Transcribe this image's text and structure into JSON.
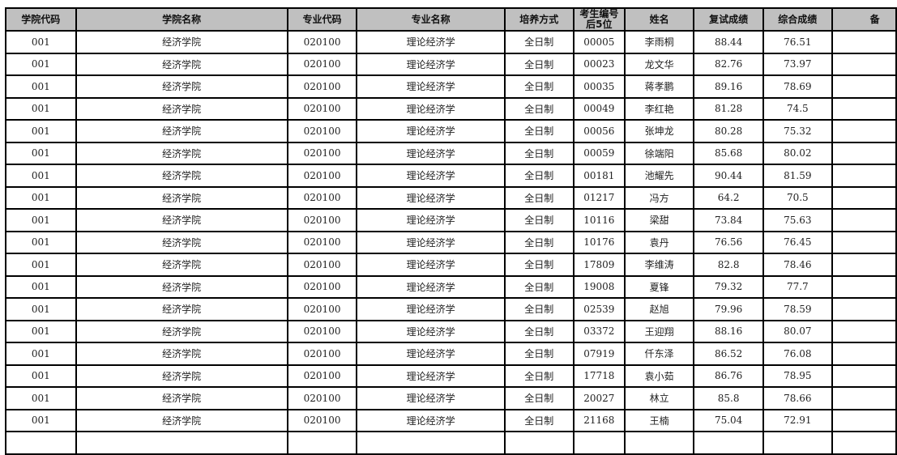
{
  "table": {
    "headers": [
      "学院代码",
      "学院名称",
      "专业代码",
      "专业名称",
      "培养方式",
      "考生编号\n后5位",
      "姓名",
      "复试成绩",
      "综合成绩",
      "备"
    ],
    "rows": [
      [
        "001",
        "经济学院",
        "020100",
        "理论经济学",
        "全日制",
        "00005",
        "李雨桐",
        "88.44",
        "76.51",
        ""
      ],
      [
        "001",
        "经济学院",
        "020100",
        "理论经济学",
        "全日制",
        "00023",
        "龙文华",
        "82.76",
        "73.97",
        ""
      ],
      [
        "001",
        "经济学院",
        "020100",
        "理论经济学",
        "全日制",
        "00035",
        "蒋孝鹏",
        "89.16",
        "78.69",
        ""
      ],
      [
        "001",
        "经济学院",
        "020100",
        "理论经济学",
        "全日制",
        "00049",
        "李红艳",
        "81.28",
        "74.5",
        ""
      ],
      [
        "001",
        "经济学院",
        "020100",
        "理论经济学",
        "全日制",
        "00056",
        "张坤龙",
        "80.28",
        "75.32",
        ""
      ],
      [
        "001",
        "经济学院",
        "020100",
        "理论经济学",
        "全日制",
        "00059",
        "徐端阳",
        "85.68",
        "80.02",
        ""
      ],
      [
        "001",
        "经济学院",
        "020100",
        "理论经济学",
        "全日制",
        "00181",
        "池耀先",
        "90.44",
        "81.59",
        ""
      ],
      [
        "001",
        "经济学院",
        "020100",
        "理论经济学",
        "全日制",
        "01217",
        "冯方",
        "64.2",
        "70.5",
        ""
      ],
      [
        "001",
        "经济学院",
        "020100",
        "理论经济学",
        "全日制",
        "10116",
        "梁甜",
        "73.84",
        "75.63",
        ""
      ],
      [
        "001",
        "经济学院",
        "020100",
        "理论经济学",
        "全日制",
        "10176",
        "袁丹",
        "76.56",
        "76.45",
        ""
      ],
      [
        "001",
        "经济学院",
        "020100",
        "理论经济学",
        "全日制",
        "17809",
        "李维涛",
        "82.8",
        "78.46",
        ""
      ],
      [
        "001",
        "经济学院",
        "020100",
        "理论经济学",
        "全日制",
        "19008",
        "夏锋",
        "79.32",
        "77.7",
        ""
      ],
      [
        "001",
        "经济学院",
        "020100",
        "理论经济学",
        "全日制",
        "02539",
        "赵旭",
        "79.96",
        "78.59",
        ""
      ],
      [
        "001",
        "经济学院",
        "020100",
        "理论经济学",
        "全日制",
        "03372",
        "王迎翔",
        "88.16",
        "80.07",
        ""
      ],
      [
        "001",
        "经济学院",
        "020100",
        "理论经济学",
        "全日制",
        "07919",
        "仟东泽",
        "86.52",
        "76.08",
        ""
      ],
      [
        "001",
        "经济学院",
        "020100",
        "理论经济学",
        "全日制",
        "17718",
        "袁小茹",
        "86.76",
        "78.95",
        ""
      ],
      [
        "001",
        "经济学院",
        "020100",
        "理论经济学",
        "全日制",
        "20027",
        "林立",
        "85.8",
        "78.66",
        ""
      ],
      [
        "001",
        "经济学院",
        "020100",
        "理论经济学",
        "全日制",
        "21168",
        "王楠",
        "75.04",
        "72.91",
        ""
      ],
      [
        "",
        "",
        "",
        "",
        "",
        "",
        "",
        "",
        "",
        ""
      ]
    ]
  }
}
